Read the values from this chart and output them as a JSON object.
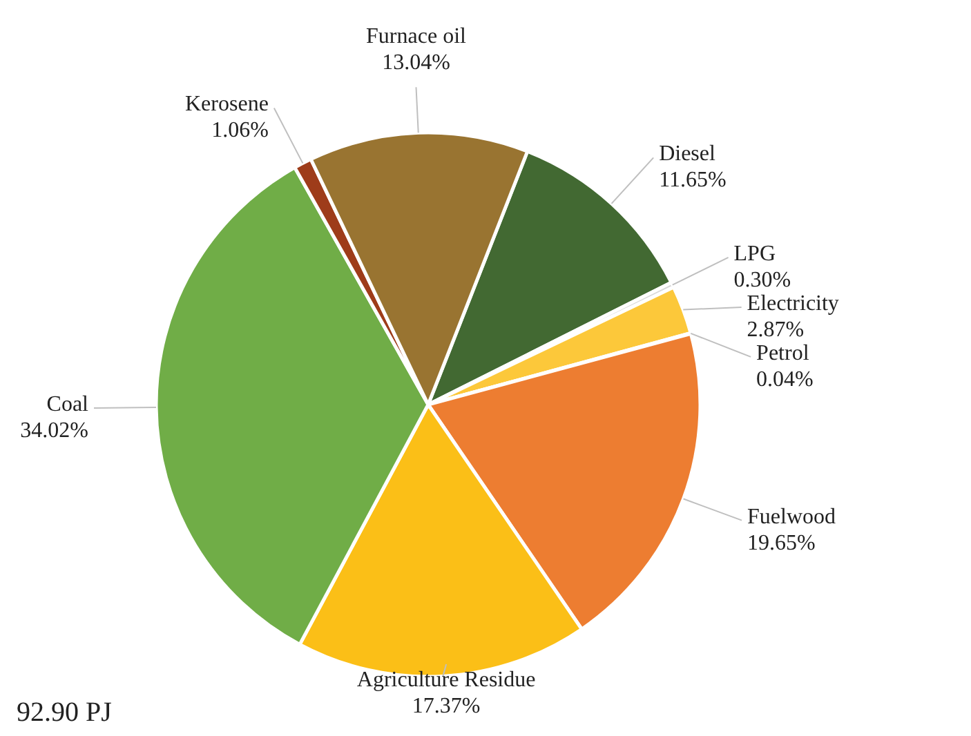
{
  "chart_data": {
    "type": "pie",
    "categories": [
      "Diesel",
      "LPG",
      "Electricity",
      "Petrol",
      "Fuelwood",
      "Agriculture  Residue",
      "Coal",
      "Kerosene",
      "Furnace oil"
    ],
    "values": [
      11.65,
      0.3,
      2.87,
      0.04,
      19.65,
      17.37,
      34.02,
      1.06,
      13.04
    ],
    "value_labels": [
      "11.65%",
      "0.30%",
      "2.87%",
      "0.04%",
      "19.65%",
      "17.37%",
      "34.02%",
      "1.06%",
      "13.04%"
    ],
    "colors": [
      "#426932",
      "#d9d9d9",
      "#fcc83a",
      "#f4b183",
      "#ed7d31",
      "#fbbf17",
      "#70ad47",
      "#9e3c1a",
      "#997431"
    ],
    "annotations": [
      "92.90 PJ"
    ]
  }
}
